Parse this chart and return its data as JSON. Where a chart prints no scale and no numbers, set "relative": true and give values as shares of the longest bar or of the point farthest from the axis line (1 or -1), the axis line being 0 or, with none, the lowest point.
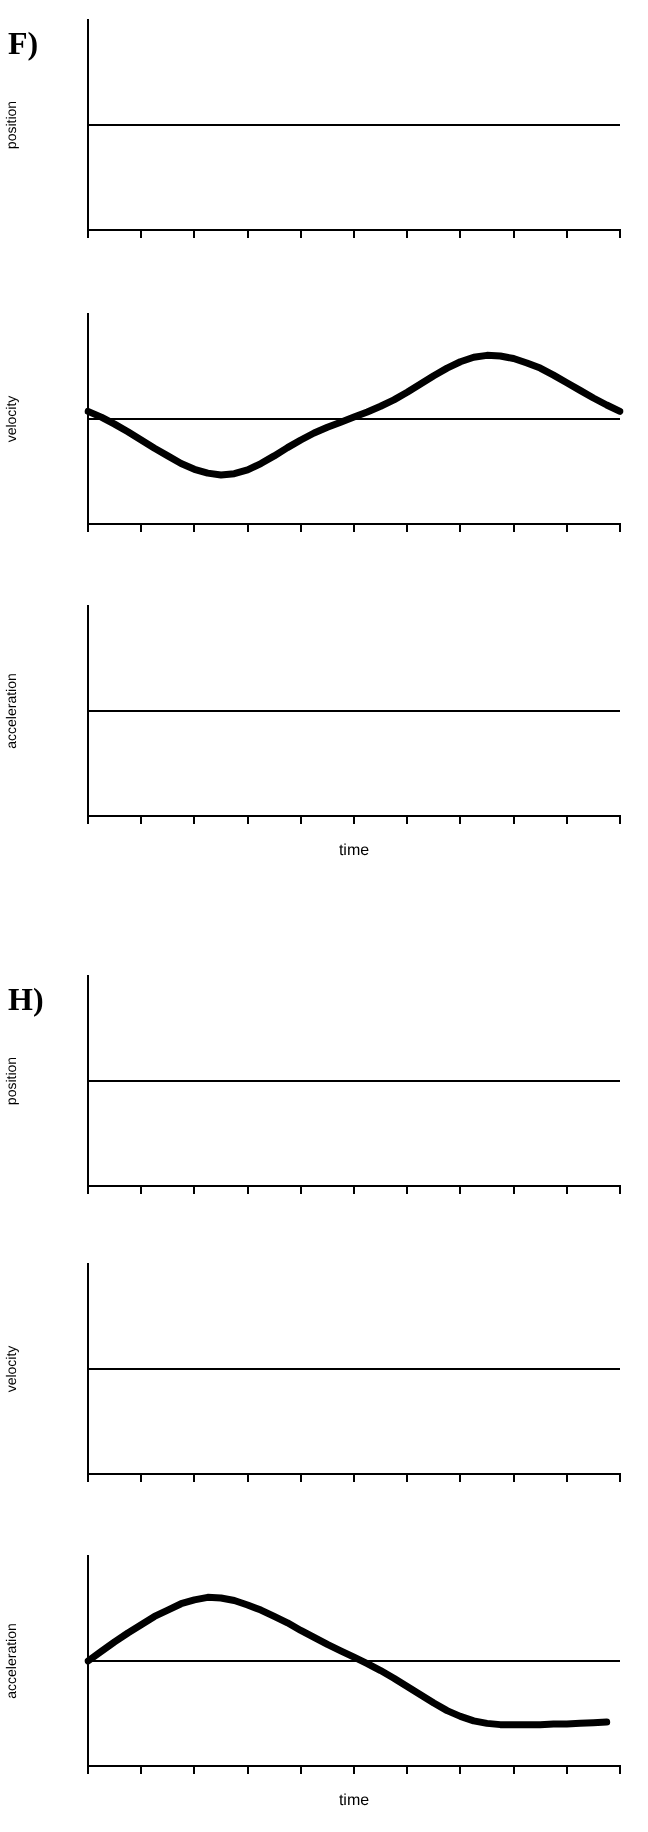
{
  "chart_data": [
    {
      "type": "other",
      "title": "F)",
      "ylabel": "position"
    },
    {
      "type": "line",
      "ylabel": "velocity",
      "relative": true,
      "categories": [
        null,
        null,
        null,
        null,
        null,
        null,
        null,
        null,
        null,
        null,
        null,
        null,
        null,
        null,
        null,
        null,
        null,
        null,
        null,
        null,
        null,
        null,
        null,
        null,
        null,
        null,
        null,
        null,
        null,
        null,
        null,
        null,
        null,
        null,
        null,
        null,
        null,
        null,
        null,
        null,
        null
      ],
      "values": [
        0.12,
        0.03,
        -0.08,
        -0.2,
        -0.33,
        -0.46,
        -0.58,
        -0.7,
        -0.79,
        -0.85,
        -0.88,
        -0.86,
        -0.8,
        -0.7,
        -0.58,
        -0.45,
        -0.33,
        -0.22,
        -0.13,
        -0.05,
        0.03,
        0.11,
        0.2,
        0.3,
        0.42,
        0.55,
        0.68,
        0.8,
        0.9,
        0.97,
        1,
        0.99,
        0.95,
        0.88,
        0.8,
        0.69,
        0.57,
        0.45,
        0.33,
        0.22,
        0.12
      ],
      "color": "#000000"
    },
    {
      "type": "other",
      "ylabel": "acceleration",
      "xlabel": "time"
    },
    {
      "type": "other",
      "title": "H)",
      "ylabel": "position"
    },
    {
      "type": "other",
      "ylabel": "velocity"
    },
    {
      "type": "line",
      "ylabel": "acceleration",
      "xlabel": "time",
      "relative": true,
      "categories": [
        null,
        null,
        null,
        null,
        null,
        null,
        null,
        null,
        null,
        null,
        null,
        null,
        null,
        null,
        null,
        null,
        null,
        null,
        null,
        null,
        null,
        null,
        null,
        null,
        null,
        null,
        null,
        null,
        null,
        null,
        null,
        null,
        null,
        null,
        null,
        null,
        null,
        null,
        null,
        null,
        null
      ],
      "values": [
        0,
        0.15,
        0.3,
        0.44,
        0.57,
        0.7,
        0.8,
        0.9,
        0.96,
        1,
        0.99,
        0.95,
        0.88,
        0.8,
        0.7,
        0.6,
        0.48,
        0.37,
        0.26,
        0.16,
        0.06,
        -0.04,
        -0.15,
        -0.27,
        -0.4,
        -0.53,
        -0.66,
        -0.78,
        -0.87,
        -0.94,
        -0.98,
        -1,
        -1,
        -1,
        -1,
        -0.99,
        -0.99,
        -0.98,
        -0.97,
        -0.96,
        null
      ],
      "color": "#000000"
    }
  ]
}
